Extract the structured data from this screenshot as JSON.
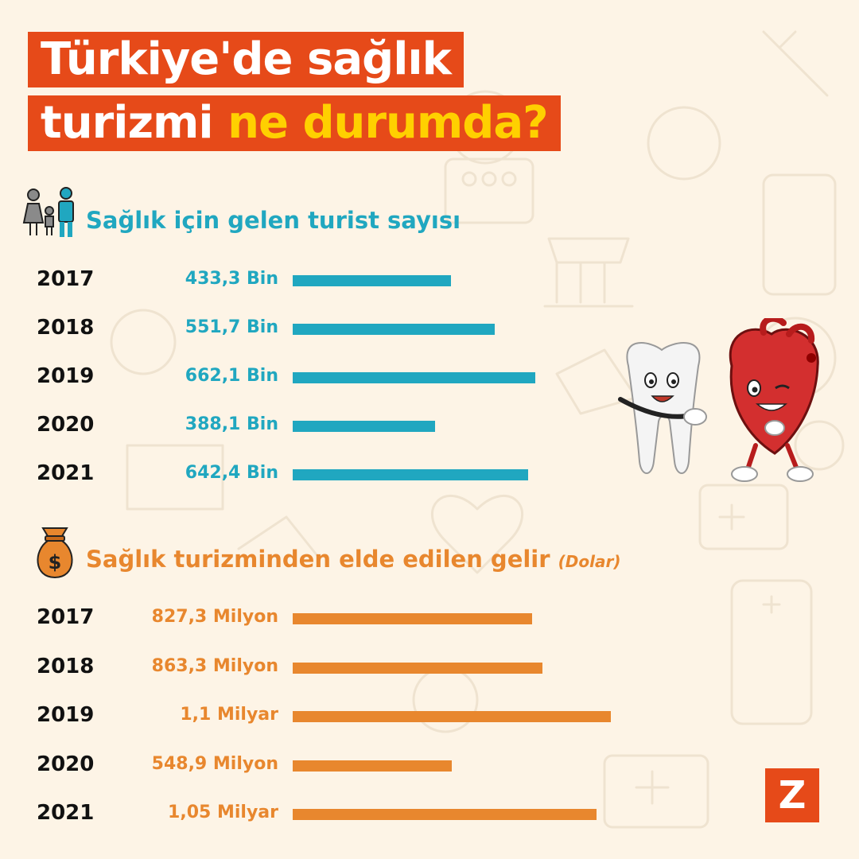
{
  "title": {
    "line1": "Türkiye'de sağlık",
    "line2_prefix": "turizmi",
    "line2_highlight": "ne durumda?"
  },
  "colors": {
    "background": "#fdf4e6",
    "title_bg": "#e64a19",
    "highlight": "#ffd000",
    "series1": "#20a7c0",
    "series2": "#e8872e"
  },
  "icons": [
    "family-icon",
    "money-bag-icon",
    "tooth-heart-mascot-icon"
  ],
  "logo_letter": "Z",
  "chart_data": [
    {
      "type": "bar",
      "title": "Sağlık için gelen turist sayısı",
      "categories": [
        "2017",
        "2018",
        "2019",
        "2020",
        "2021"
      ],
      "values": [
        433.3,
        551.7,
        662.1,
        388.1,
        642.4
      ],
      "value_labels": [
        "433,3 Bin",
        "551,7 Bin",
        "662,1 Bin",
        "388,1 Bin",
        "642,4 Bin"
      ],
      "unit": "Bin",
      "orientation": "horizontal",
      "xlim": [
        0,
        700
      ],
      "grid": false
    },
    {
      "type": "bar",
      "title": "Sağlık turizminden elde edilen gelir",
      "unit_label": "(Dolar)",
      "categories": [
        "2017",
        "2018",
        "2019",
        "2020",
        "2021"
      ],
      "values": [
        827.3,
        863.3,
        1100,
        548.9,
        1050
      ],
      "value_labels": [
        "827,3 Milyon",
        "863,3 Milyon",
        "1,1 Milyar",
        "548,9 Milyon",
        "1,05 Milyar"
      ],
      "unit": "Milyon",
      "orientation": "horizontal",
      "xlim": [
        0,
        1150
      ],
      "grid": false
    }
  ]
}
